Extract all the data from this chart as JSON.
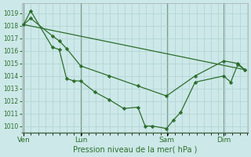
{
  "background_color": "#cce8e8",
  "grid_color": "#aacccc",
  "line_color": "#2d6e2d",
  "marker_color": "#2d6e2d",
  "xlabel": "Pression niveau de la mer( hPa )",
  "ylim": [
    1009.5,
    1019.8
  ],
  "yticks": [
    1010,
    1011,
    1012,
    1013,
    1014,
    1015,
    1016,
    1017,
    1018,
    1019
  ],
  "day_positions": [
    0.0,
    0.285,
    0.715,
    1.0
  ],
  "day_labels": [
    "Ven",
    "Lun",
    "Sam",
    "Dim"
  ],
  "xlim": [
    0,
    1.12
  ],
  "series1_x": [
    0.0,
    0.035,
    0.143,
    0.178,
    0.214,
    0.25,
    0.285,
    0.357,
    0.428,
    0.5,
    0.571,
    0.607,
    0.643,
    0.714,
    0.75,
    0.785,
    0.857,
    1.0,
    1.035,
    1.07,
    1.105
  ],
  "series1_y": [
    1018.1,
    1019.2,
    1016.3,
    1016.1,
    1013.8,
    1013.6,
    1013.6,
    1012.7,
    1012.1,
    1011.4,
    1011.5,
    1010.0,
    1010.0,
    1009.8,
    1010.5,
    1011.1,
    1013.5,
    1014.0,
    1013.5,
    1014.9,
    1014.5
  ],
  "series2_x": [
    0.0,
    0.035,
    0.143,
    0.178,
    0.214,
    0.285,
    0.428,
    0.571,
    0.714,
    0.857,
    1.0,
    1.07,
    1.105
  ],
  "series2_y": [
    1018.1,
    1018.6,
    1017.2,
    1016.8,
    1016.2,
    1014.8,
    1014.0,
    1013.2,
    1012.4,
    1014.0,
    1015.2,
    1015.0,
    1014.5
  ],
  "series3_x": [
    0.0,
    1.105
  ],
  "series3_y": [
    1018.1,
    1014.5
  ],
  "vline_positions": [
    0.0,
    0.285,
    0.715,
    1.0
  ],
  "vline_color": "#446644"
}
